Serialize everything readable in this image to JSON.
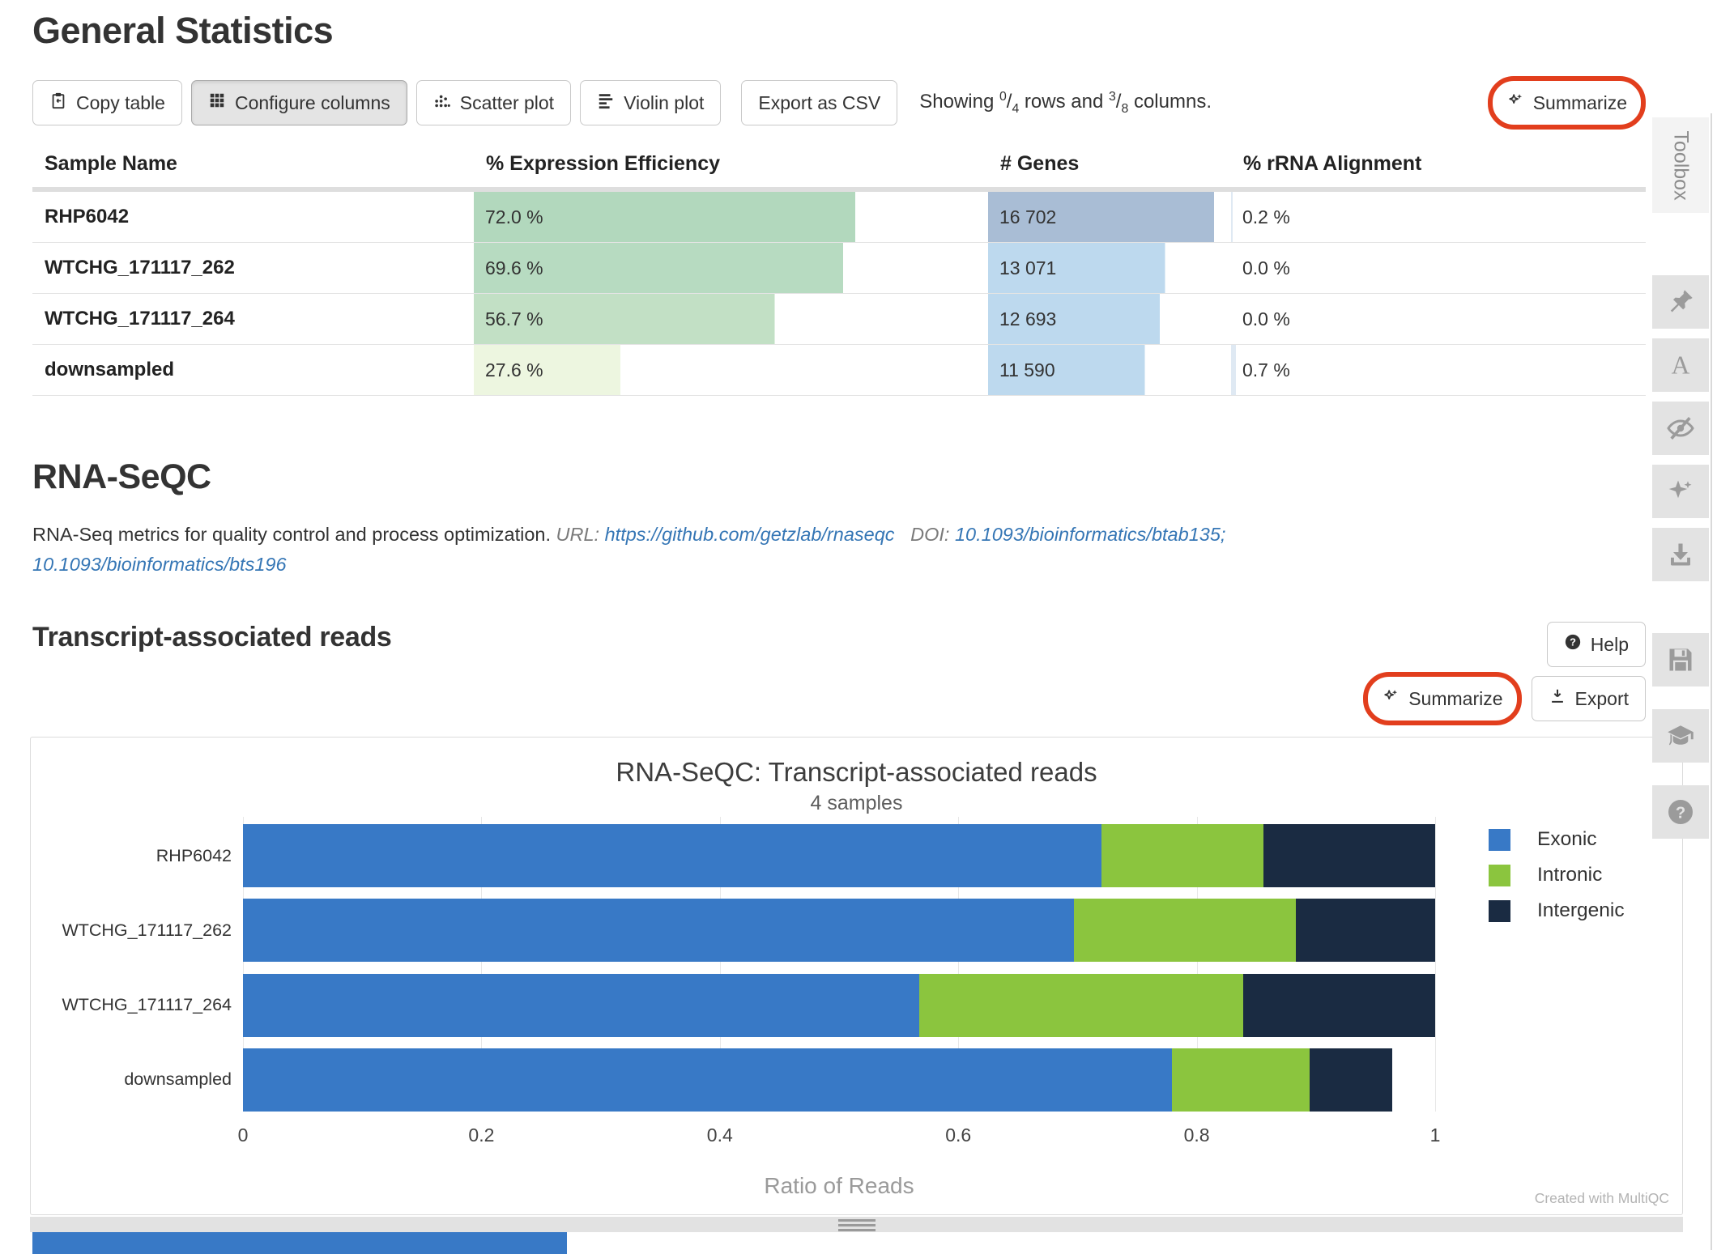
{
  "header": {
    "title": "General Statistics"
  },
  "toolbar": {
    "copy_table": "Copy table",
    "configure_columns": "Configure columns",
    "scatter_plot": "Scatter plot",
    "violin_plot": "Violin plot",
    "export_csv": "Export as CSV",
    "summarize": "Summarize",
    "showing": {
      "prefix": "Showing ",
      "rows_shown": "0",
      "slash1": "/",
      "rows_total": "4",
      "middle": " rows and ",
      "cols_shown": "3",
      "slash2": "/",
      "cols_total": "8",
      "suffix": " columns."
    }
  },
  "stats_table": {
    "headers": [
      "Sample Name",
      "% Expression Efficiency",
      "# Genes",
      "% rRNA Alignment"
    ],
    "expression_scale_max": 97,
    "genes_scale_max": 16702,
    "genes_bar_full_pct": 93,
    "rows": [
      {
        "sample": "RHP6042",
        "expression": "72.0 %",
        "expression_value": 72.0,
        "expression_bar_color": "#b2d8bd",
        "genes": "16 702",
        "genes_value": 16702,
        "genes_bar_color": "#a9bdd5",
        "rrna": "0.2 %",
        "rrna_value": 0.2,
        "rrna_bar_color": "#dfe9f3"
      },
      {
        "sample": "WTCHG_171117_262",
        "expression": "69.6 %",
        "expression_value": 69.6,
        "expression_bar_color": "#b7dbc1",
        "genes": "13 071",
        "genes_value": 13071,
        "genes_bar_color": "#bdd9ee",
        "rrna": "0.0 %",
        "rrna_value": 0.0,
        "rrna_bar_color": "#dfe9f3"
      },
      {
        "sample": "WTCHG_171117_264",
        "expression": "56.7 %",
        "expression_value": 56.7,
        "expression_bar_color": "#c2e0c5",
        "genes": "12 693",
        "genes_value": 12693,
        "genes_bar_color": "#bdd9ee",
        "rrna": "0.0 %",
        "rrna_value": 0.0,
        "rrna_bar_color": "#dfe9f3"
      },
      {
        "sample": "downsampled",
        "expression": "27.6 %",
        "expression_value": 27.6,
        "expression_bar_color": "#edf6e0",
        "genes": "11 590",
        "genes_value": 11590,
        "genes_bar_color": "#bdd9ee",
        "rrna": "0.7 %",
        "rrna_value": 0.7,
        "rrna_bar_color": "#dfe9f3"
      }
    ]
  },
  "module": {
    "title": "RNA-SeQC",
    "description": "RNA-Seq metrics for quality control and process optimization.",
    "url_label": "URL:",
    "url": "https://github.com/getzlab/rnaseqc",
    "doi_label": "DOI:",
    "doi_primary": "10.1093/bioinformatics/btab135;",
    "doi_secondary": "10.1093/bioinformatics/bts196",
    "section_title": "Transcript-associated reads",
    "help": "Help",
    "summarize": "Summarize",
    "export": "Export"
  },
  "chart_data": {
    "type": "bar",
    "orientation": "horizontal",
    "stacked": true,
    "title": "RNA-SeQC: Transcript-associated reads",
    "subtitle": "4 samples",
    "categories": [
      "RHP6042",
      "WTCHG_171117_262",
      "WTCHG_171117_264",
      "downsampled"
    ],
    "series": [
      {
        "name": "Exonic",
        "color": "#3879c6",
        "values": [
          0.72,
          0.697,
          0.567,
          0.779
        ]
      },
      {
        "name": "Intronic",
        "color": "#8bc53e",
        "values": [
          0.136,
          0.186,
          0.272,
          0.116
        ]
      },
      {
        "name": "Intergenic",
        "color": "#1a2b42",
        "values": [
          0.144,
          0.117,
          0.161,
          0.069
        ]
      }
    ],
    "xlabel": "Ratio of Reads",
    "xticks": [
      0,
      0.2,
      0.4,
      0.6,
      0.8,
      1
    ],
    "xlim": [
      0,
      1
    ],
    "grid": true,
    "legend_position": "right",
    "watermark": "Created with MultiQC"
  },
  "sidebar": {
    "toolbox_label": "Toolbox",
    "icons": [
      "pin",
      "font",
      "eye-slash",
      "sparkle",
      "download",
      "save",
      "cite",
      "help"
    ]
  },
  "accent_colors": {
    "annotation_ring": "#e23e1d"
  }
}
